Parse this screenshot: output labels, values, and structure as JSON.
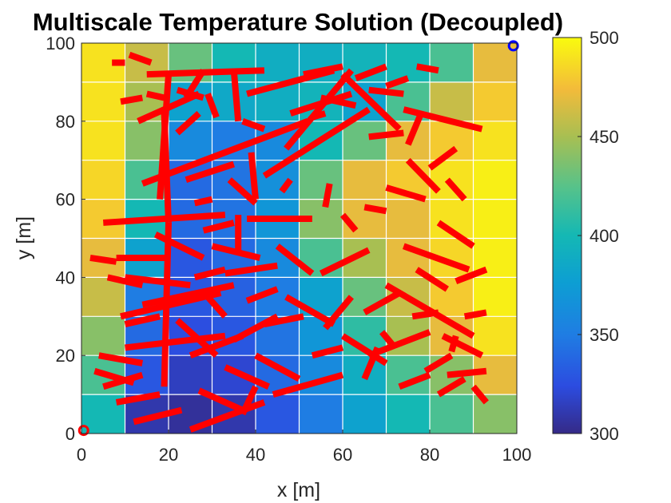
{
  "chart_data": {
    "type": "heatmap",
    "title": "Multiscale Temperature Solution (Decoupled)",
    "xlabel": "x [m]",
    "ylabel": "y [m]",
    "xlim": [
      0,
      100
    ],
    "ylim": [
      0,
      100
    ],
    "x_ticks": [
      "0",
      "20",
      "40",
      "60",
      "80",
      "100"
    ],
    "y_ticks": [
      "0",
      "20",
      "40",
      "60",
      "80",
      "100"
    ],
    "grid": true,
    "colorbar": {
      "range": [
        300,
        500
      ],
      "ticks": [
        "300",
        "350",
        "400",
        "450",
        "500"
      ],
      "colormap": "parula"
    },
    "field_overlay": {
      "grid_step": 10,
      "temperature_rows_top_to_bottom": [
        [
          490,
          460,
          430,
          400,
          390,
          390,
          395,
          400,
          420,
          470
        ],
        [
          490,
          450,
          380,
          385,
          390,
          395,
          380,
          420,
          460,
          480
        ],
        [
          490,
          440,
          360,
          350,
          360,
          400,
          430,
          470,
          480,
          490
        ],
        [
          485,
          420,
          340,
          345,
          365,
          430,
          470,
          480,
          490,
          495
        ],
        [
          480,
          400,
          340,
          345,
          370,
          440,
          470,
          470,
          490,
          495
        ],
        [
          470,
          380,
          330,
          340,
          360,
          420,
          450,
          470,
          485,
          495
        ],
        [
          460,
          350,
          330,
          335,
          350,
          380,
          430,
          460,
          480,
          495
        ],
        [
          440,
          340,
          325,
          330,
          345,
          370,
          410,
          450,
          470,
          490
        ],
        [
          420,
          330,
          315,
          320,
          340,
          360,
          390,
          420,
          440,
          470
        ],
        [
          400,
          310,
          305,
          310,
          330,
          350,
          380,
          400,
          420,
          440
        ]
      ]
    },
    "fractures": [
      [
        [
          15,
          92
        ],
        [
          42,
          93
        ]
      ],
      [
        [
          20,
          92
        ],
        [
          18,
          60
        ]
      ],
      [
        [
          35,
          93
        ],
        [
          36,
          80
        ]
      ],
      [
        [
          28,
          93
        ],
        [
          24,
          86
        ]
      ],
      [
        [
          9,
          85
        ],
        [
          14,
          86
        ]
      ],
      [
        [
          15,
          87
        ],
        [
          19,
          86
        ]
      ],
      [
        [
          7,
          95
        ],
        [
          10,
          95
        ]
      ],
      [
        [
          13,
          80
        ],
        [
          27,
          87
        ]
      ],
      [
        [
          22,
          88
        ],
        [
          28,
          86
        ]
      ],
      [
        [
          38,
          87
        ],
        [
          58,
          93
        ]
      ],
      [
        [
          48,
          82
        ],
        [
          62,
          87
        ]
      ],
      [
        [
          55,
          86
        ],
        [
          63,
          84
        ]
      ],
      [
        [
          51,
          92
        ],
        [
          60,
          94
        ]
      ],
      [
        [
          63,
          91
        ],
        [
          70,
          94
        ]
      ],
      [
        [
          66,
          88
        ],
        [
          74,
          87
        ]
      ],
      [
        [
          70,
          89
        ],
        [
          75,
          91
        ]
      ],
      [
        [
          77,
          94
        ],
        [
          82,
          93
        ]
      ],
      [
        [
          53,
          81
        ],
        [
          56,
          82
        ]
      ],
      [
        [
          66,
          76
        ],
        [
          74,
          77
        ]
      ],
      [
        [
          74,
          83
        ],
        [
          92,
          78
        ]
      ],
      [
        [
          78,
          82
        ],
        [
          75,
          74
        ]
      ],
      [
        [
          80,
          68
        ],
        [
          86,
          73
        ]
      ],
      [
        [
          60,
          92
        ],
        [
          73,
          78
        ]
      ],
      [
        [
          42,
          66
        ],
        [
          66,
          83
        ]
      ],
      [
        [
          47,
          73
        ],
        [
          62,
          93
        ]
      ],
      [
        [
          14,
          64
        ],
        [
          52,
          80
        ]
      ],
      [
        [
          27,
          82
        ],
        [
          22,
          77
        ]
      ],
      [
        [
          5,
          54
        ],
        [
          33,
          56
        ]
      ],
      [
        [
          8,
          45
        ],
        [
          20,
          45
        ]
      ],
      [
        [
          10,
          40
        ],
        [
          25,
          38
        ]
      ],
      [
        [
          9,
          30
        ],
        [
          32,
          36
        ]
      ],
      [
        [
          14,
          33
        ],
        [
          35,
          38
        ]
      ],
      [
        [
          19,
          82
        ],
        [
          20,
          54
        ]
      ],
      [
        [
          20,
          54
        ],
        [
          19,
          12
        ]
      ],
      [
        [
          26,
          59
        ],
        [
          30,
          60
        ]
      ],
      [
        [
          24,
          65
        ],
        [
          35,
          69
        ]
      ],
      [
        [
          34,
          65
        ],
        [
          40,
          59
        ]
      ],
      [
        [
          39,
          72
        ],
        [
          40,
          60
        ]
      ],
      [
        [
          46,
          62
        ],
        [
          48,
          65
        ]
      ],
      [
        [
          28,
          52
        ],
        [
          35,
          54
        ]
      ],
      [
        [
          30,
          48
        ],
        [
          41,
          45
        ]
      ],
      [
        [
          38,
          55
        ],
        [
          53,
          55
        ]
      ],
      [
        [
          33,
          41
        ],
        [
          45,
          43
        ]
      ],
      [
        [
          36,
          56
        ],
        [
          36,
          46
        ]
      ],
      [
        [
          45,
          48
        ],
        [
          53,
          41
        ]
      ],
      [
        [
          55,
          41
        ],
        [
          66,
          47
        ]
      ],
      [
        [
          56,
          58
        ],
        [
          57,
          64
        ]
      ],
      [
        [
          60,
          56
        ],
        [
          63,
          52
        ]
      ],
      [
        [
          65,
          58
        ],
        [
          70,
          57
        ]
      ],
      [
        [
          70,
          63
        ],
        [
          79,
          60
        ]
      ],
      [
        [
          75,
          70
        ],
        [
          82,
          62
        ]
      ],
      [
        [
          84,
          65
        ],
        [
          88,
          60
        ]
      ],
      [
        [
          82,
          54
        ],
        [
          90,
          48
        ]
      ],
      [
        [
          74,
          48
        ],
        [
          89,
          42
        ]
      ],
      [
        [
          77,
          42
        ],
        [
          84,
          37
        ]
      ],
      [
        [
          86,
          39
        ],
        [
          93,
          42
        ]
      ],
      [
        [
          88,
          30
        ],
        [
          93,
          31
        ]
      ],
      [
        [
          76,
          30
        ],
        [
          82,
          31
        ]
      ],
      [
        [
          83,
          25
        ],
        [
          92,
          20
        ]
      ],
      [
        [
          84,
          15
        ],
        [
          93,
          16
        ]
      ],
      [
        [
          70,
          38
        ],
        [
          90,
          25
        ]
      ],
      [
        [
          66,
          20
        ],
        [
          80,
          26
        ]
      ],
      [
        [
          60,
          25
        ],
        [
          70,
          18
        ]
      ],
      [
        [
          56,
          27
        ],
        [
          62,
          35
        ]
      ],
      [
        [
          47,
          35
        ],
        [
          58,
          28
        ]
      ],
      [
        [
          42,
          28
        ],
        [
          51,
          30
        ]
      ],
      [
        [
          40,
          20
        ],
        [
          50,
          14
        ]
      ],
      [
        [
          44,
          10
        ],
        [
          60,
          15
        ]
      ],
      [
        [
          33,
          17
        ],
        [
          43,
          12
        ]
      ],
      [
        [
          35,
          24
        ],
        [
          45,
          30
        ]
      ],
      [
        [
          27,
          11
        ],
        [
          37,
          6
        ]
      ],
      [
        [
          25,
          20
        ],
        [
          37,
          25
        ]
      ],
      [
        [
          22,
          29
        ],
        [
          31,
          20
        ]
      ],
      [
        [
          10,
          22
        ],
        [
          33,
          25
        ]
      ],
      [
        [
          10,
          28
        ],
        [
          18,
          30
        ]
      ],
      [
        [
          4,
          20
        ],
        [
          14,
          18
        ]
      ],
      [
        [
          3,
          16
        ],
        [
          12,
          13
        ]
      ],
      [
        [
          5,
          12
        ],
        [
          14,
          15
        ]
      ],
      [
        [
          8,
          8
        ],
        [
          18,
          10
        ]
      ],
      [
        [
          12,
          3
        ],
        [
          23,
          6
        ]
      ],
      [
        [
          25,
          1
        ],
        [
          42,
          8
        ]
      ],
      [
        [
          37,
          5
        ],
        [
          40,
          12
        ]
      ],
      [
        [
          26,
          40
        ],
        [
          33,
          42
        ]
      ],
      [
        [
          29,
          35
        ],
        [
          33,
          30
        ]
      ],
      [
        [
          38,
          34
        ],
        [
          45,
          37
        ]
      ],
      [
        [
          53,
          20
        ],
        [
          60,
          22
        ]
      ],
      [
        [
          65,
          31
        ],
        [
          73,
          36
        ]
      ],
      [
        [
          69,
          26
        ],
        [
          72,
          22
        ]
      ],
      [
        [
          65,
          14
        ],
        [
          68,
          22
        ]
      ],
      [
        [
          73,
          12
        ],
        [
          80,
          15
        ]
      ],
      [
        [
          79,
          16
        ],
        [
          85,
          20
        ]
      ],
      [
        [
          85,
          21
        ],
        [
          86,
          25
        ]
      ],
      [
        [
          82,
          10
        ],
        [
          88,
          14
        ]
      ],
      [
        [
          90,
          12
        ],
        [
          93,
          8
        ]
      ],
      [
        [
          17,
          51
        ],
        [
          28,
          45
        ]
      ],
      [
        [
          2,
          45
        ],
        [
          8,
          44
        ]
      ],
      [
        [
          6,
          40
        ],
        [
          14,
          38
        ]
      ],
      [
        [
          29,
          87
        ],
        [
          31,
          81
        ]
      ],
      [
        [
          37,
          80
        ],
        [
          42,
          78
        ]
      ],
      [
        [
          11,
          97
        ],
        [
          16,
          95
        ]
      ]
    ],
    "markers": [
      {
        "x": 0.5,
        "y": 0.8,
        "color": "#ff0000"
      },
      {
        "x": 99.2,
        "y": 99.3,
        "color": "#0000ff"
      }
    ],
    "colors": {
      "fracture": "#ff0000",
      "grid": "#ffffff",
      "axis": "#262626"
    }
  }
}
